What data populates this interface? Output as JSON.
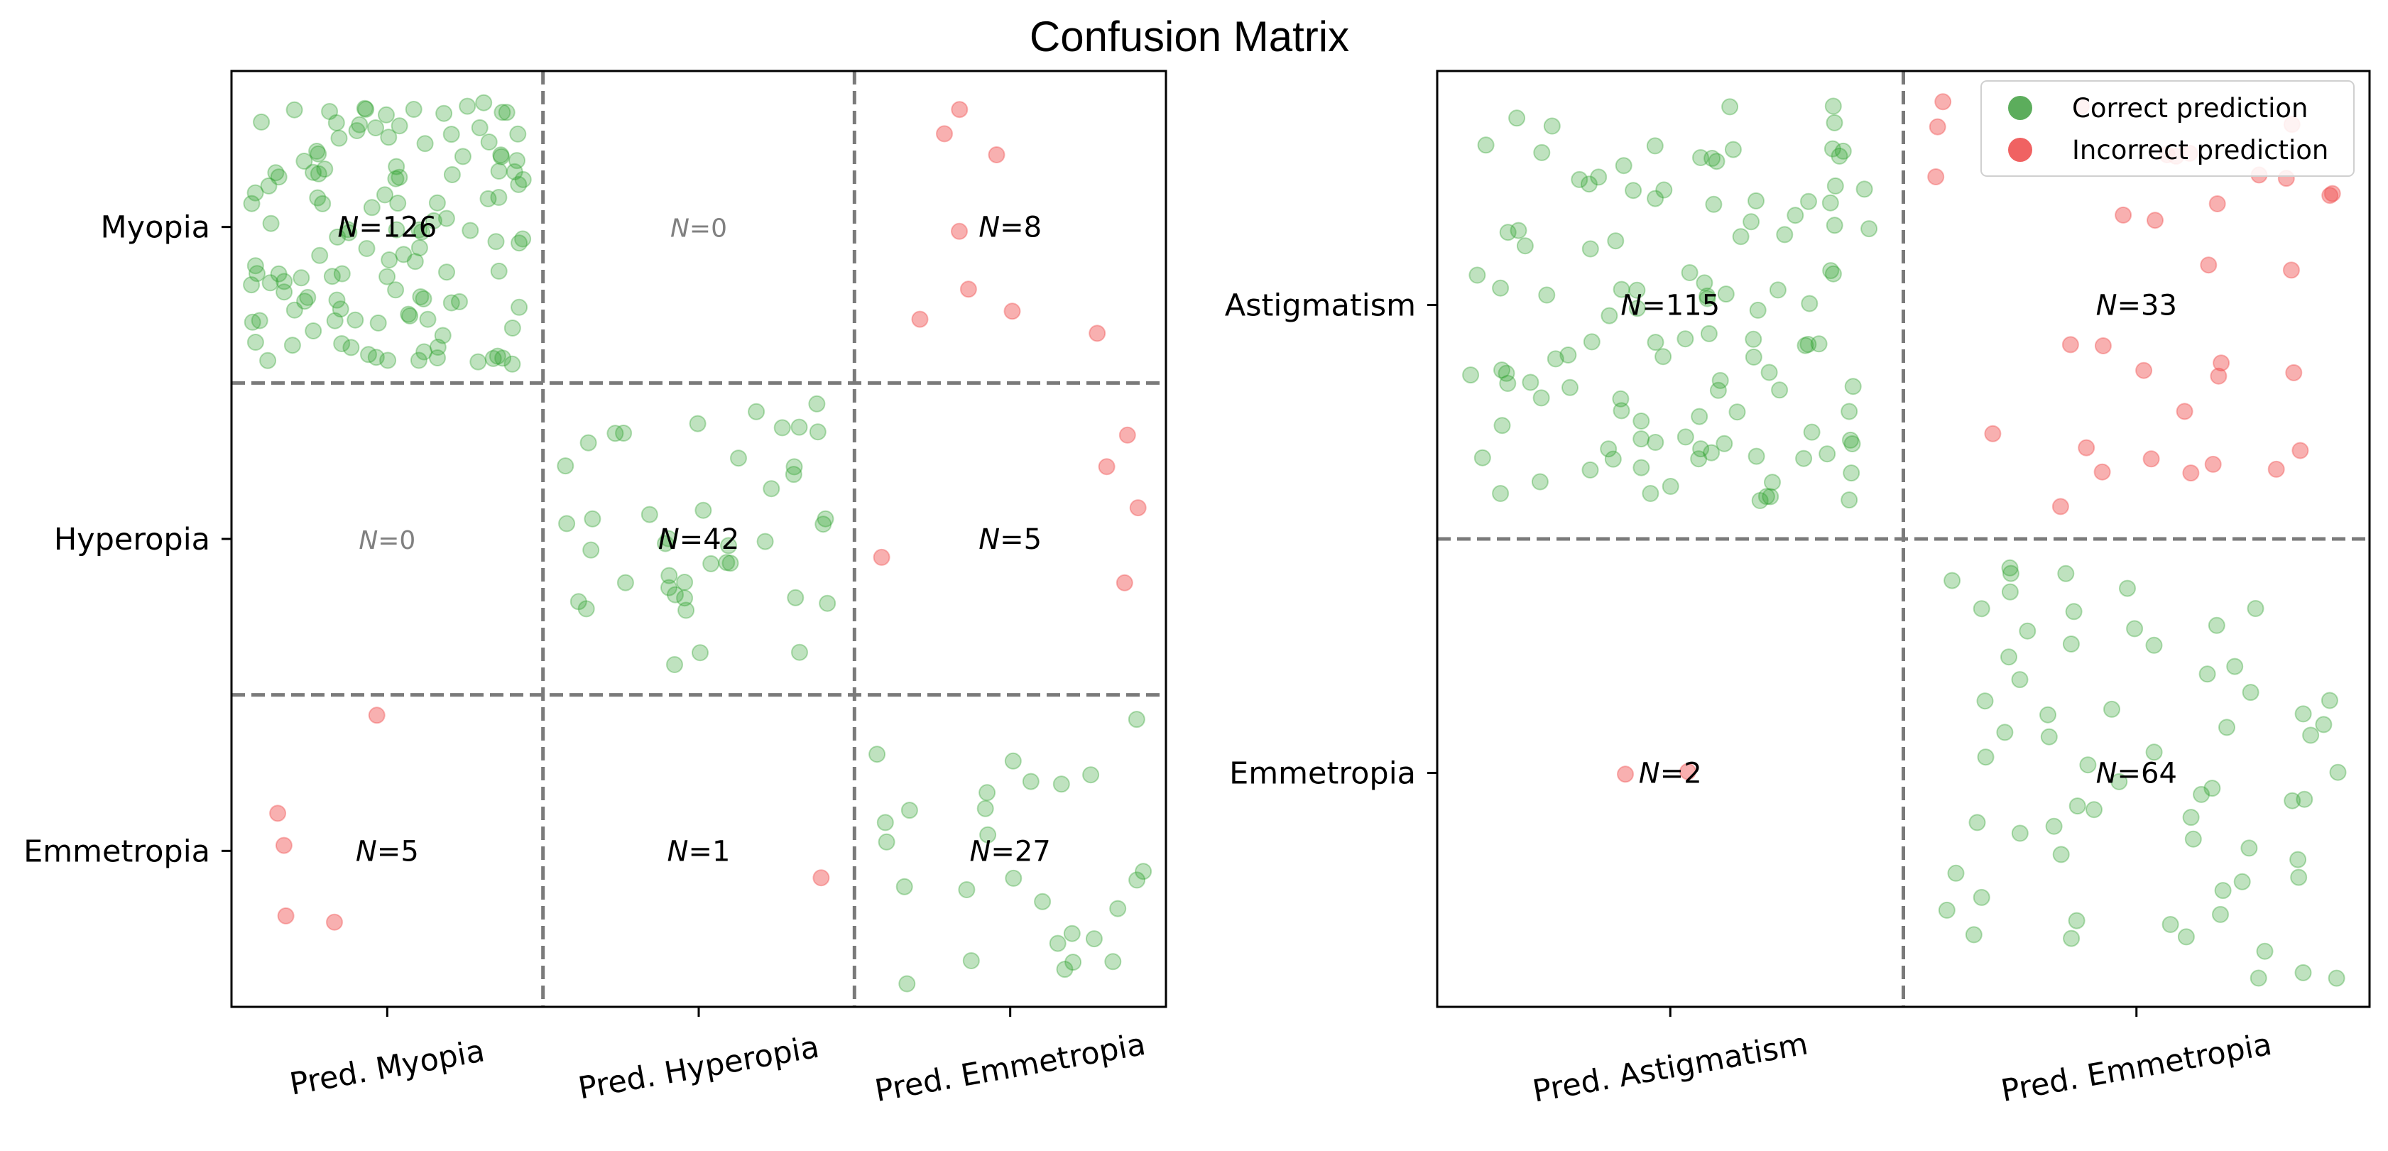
{
  "title": "Confusion Matrix",
  "colors": {
    "correct": "#2ca02c",
    "incorrect": "#f05050",
    "legend_correct": "#5cad5c",
    "legend_incorrect": "#f06262",
    "divider": "#7a7a7a",
    "zero_text": "#808080"
  },
  "legend": {
    "position": "top-right of right panel",
    "items": [
      {
        "label": "Correct prediction",
        "kind": "correct"
      },
      {
        "label": "Incorrect prediction",
        "kind": "incorrect"
      }
    ]
  },
  "chart_data": [
    {
      "type": "confusion-matrix-scatter",
      "rows": [
        "Myopia",
        "Hyperopia",
        "Emmetropia"
      ],
      "cols": [
        "Pred. Myopia",
        "Pred. Hyperopia",
        "Pred. Emmetropia"
      ],
      "counts": [
        [
          126,
          0,
          8
        ],
        [
          0,
          42,
          5
        ],
        [
          5,
          1,
          27
        ]
      ],
      "n_prefix": "N",
      "n_labels": [
        [
          "=126",
          "=0",
          "=8"
        ],
        [
          "=0",
          "=42",
          "=5"
        ],
        [
          "=5",
          "=1",
          "=27"
        ]
      ]
    },
    {
      "type": "confusion-matrix-scatter",
      "rows": [
        "Astigmatism",
        "Emmetropia"
      ],
      "cols": [
        "Pred. Astigmatism",
        "Pred. Emmetropia"
      ],
      "counts": [
        [
          115,
          33
        ],
        [
          2,
          64
        ]
      ],
      "n_prefix": "N",
      "n_labels": [
        [
          "=115",
          "=33"
        ],
        [
          "=2",
          "=64"
        ]
      ]
    }
  ]
}
